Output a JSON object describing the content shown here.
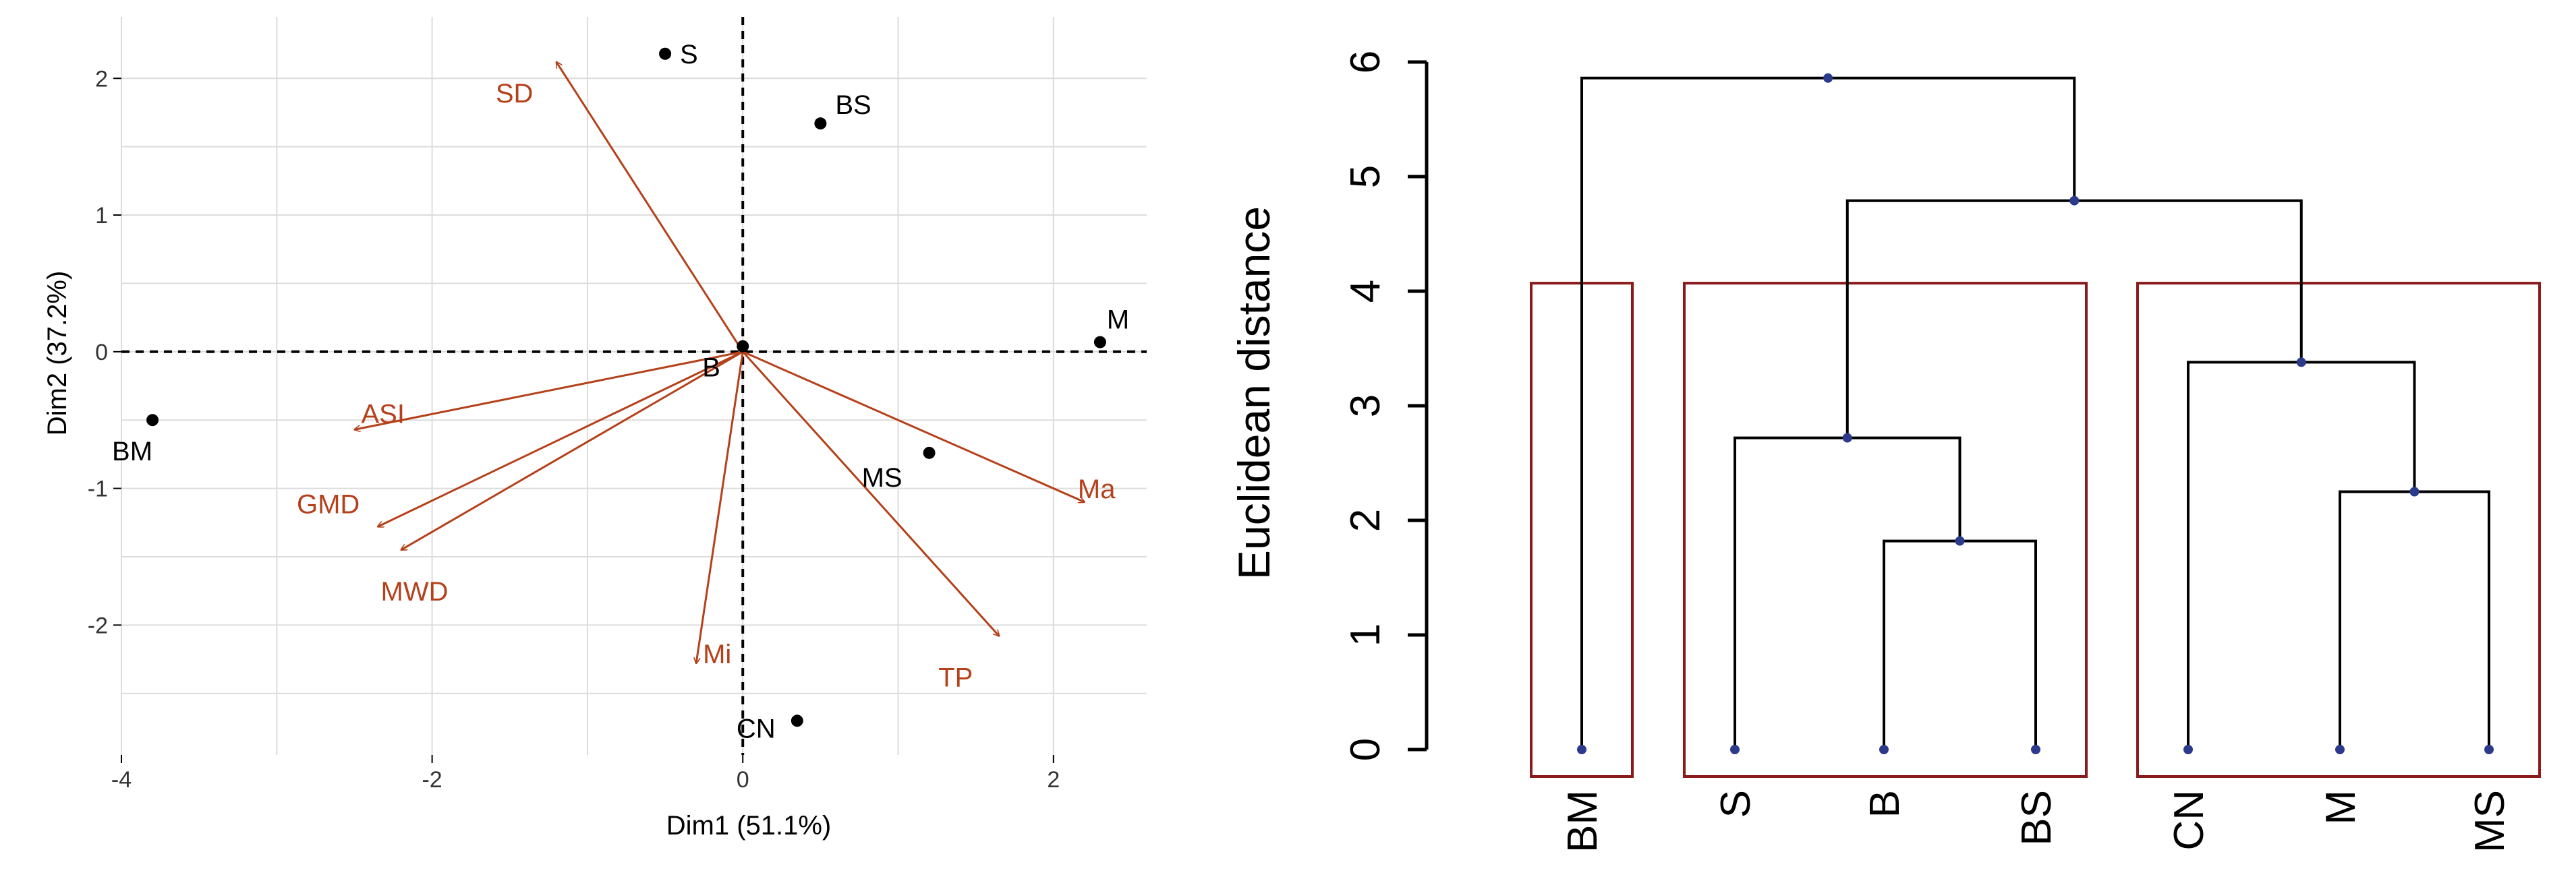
{
  "chart_data": [
    {
      "type": "scatter",
      "subtype": "pca-biplot",
      "title": "",
      "xlabel": "Dim1 (51.1%)",
      "ylabel": "Dim2 (37.2%)",
      "xlim": [
        -4.0,
        2.6
      ],
      "ylim": [
        -2.95,
        2.45
      ],
      "xticks": [
        -4,
        -2,
        0,
        2
      ],
      "yticks": [
        -2,
        -1,
        0,
        1,
        2
      ],
      "grid": true,
      "reference_lines": "dashed lines at x = 0 and y = 0",
      "colors": {
        "points": "#000000",
        "vectors": "#b5411b",
        "grid": "#dcdcdc"
      },
      "points": [
        {
          "label": "S",
          "x": -0.5,
          "y": 2.18
        },
        {
          "label": "BS",
          "x": 0.5,
          "y": 1.67
        },
        {
          "label": "M",
          "x": 2.3,
          "y": 0.07
        },
        {
          "label": "B",
          "x": 0.0,
          "y": 0.04
        },
        {
          "label": "BM",
          "x": -3.8,
          "y": -0.5
        },
        {
          "label": "MS",
          "x": 1.2,
          "y": -0.74
        },
        {
          "label": "CN",
          "x": 0.35,
          "y": -2.7
        }
      ],
      "vectors": [
        {
          "label": "SD",
          "x": -1.2,
          "y": 2.12
        },
        {
          "label": "ASI",
          "x": -2.5,
          "y": -0.57
        },
        {
          "label": "GMD",
          "x": -2.35,
          "y": -1.28
        },
        {
          "label": "MWD",
          "x": -2.2,
          "y": -1.45
        },
        {
          "label": "Mi",
          "x": -0.3,
          "y": -2.28
        },
        {
          "label": "TP",
          "x": 1.65,
          "y": -2.08
        },
        {
          "label": "Ma",
          "x": 2.2,
          "y": -1.1
        }
      ]
    },
    {
      "type": "dendrogram",
      "title": "",
      "xlabel": "",
      "ylabel": "Euclidean distance",
      "ylim": [
        0,
        6
      ],
      "yticks": [
        0,
        1,
        2,
        3,
        4,
        5,
        6
      ],
      "leaves": [
        "BM",
        "S",
        "B",
        "BS",
        "CN",
        "M",
        "MS"
      ],
      "merges": [
        {
          "left": "B",
          "right": "BS",
          "height": 1.82,
          "result": "B+BS"
        },
        {
          "left": "M",
          "right": "MS",
          "height": 2.25,
          "result": "M+MS"
        },
        {
          "left": "S",
          "right": "B+BS",
          "height": 2.72,
          "result": "S+B+BS"
        },
        {
          "left": "CN",
          "right": "M+MS",
          "height": 3.38,
          "result": "CN+M+MS"
        },
        {
          "left": "S+B+BS",
          "right": "CN+M+MS",
          "height": 4.79,
          "result": "G2"
        },
        {
          "left": "BM",
          "right": "G2",
          "height": 5.86,
          "result": "ALL"
        }
      ],
      "cluster_boxes": [
        {
          "leaves": [
            "BM"
          ],
          "top": 4.07
        },
        {
          "leaves": [
            "S",
            "B",
            "BS"
          ],
          "top": 4.07
        },
        {
          "leaves": [
            "CN",
            "M",
            "MS"
          ],
          "top": 4.07
        }
      ],
      "colors": {
        "lines": "#000000",
        "nodes": "#2c3a8c",
        "boxes": "#8b1a1a"
      }
    }
  ]
}
